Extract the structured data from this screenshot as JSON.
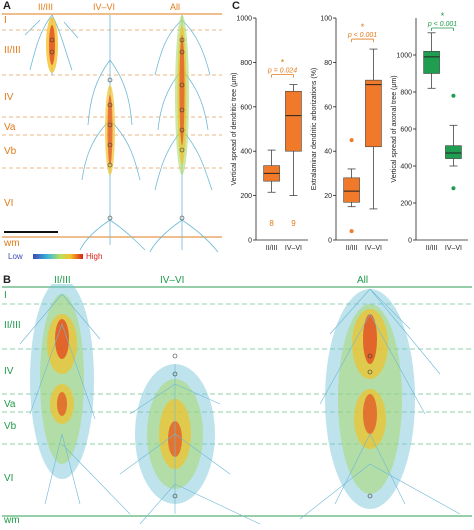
{
  "panel_a": {
    "letter": "A",
    "columns": [
      "II/III",
      "IV–VI",
      "All"
    ],
    "layers": [
      "I",
      "II/III",
      "IV",
      "Va",
      "Vb",
      "VI",
      "wm"
    ],
    "legend": {
      "low": "Low",
      "high": "High"
    }
  },
  "panel_b": {
    "letter": "B",
    "columns": [
      "II/III",
      "IV–VI",
      "All"
    ],
    "layers": [
      "I",
      "II/III",
      "IV",
      "Va",
      "Vb",
      "VI",
      "wm"
    ]
  },
  "panel_c": {
    "letter": "C"
  },
  "colors": {
    "orange": "#e07b1a",
    "green": "#1f9a4a",
    "orange_box": "#f07a2a",
    "green_box": "#1f9e52"
  },
  "chart_data": [
    {
      "type": "box",
      "ylabel": "Vertical spread of dendritic tree (μm)",
      "ylim": [
        0,
        1000
      ],
      "yticks": [
        "0",
        "200",
        "400",
        "600",
        "800",
        "1000"
      ],
      "categories": [
        "II/III",
        "IV–VI"
      ],
      "boxes": [
        {
          "min": 215,
          "q1": 265,
          "median": 300,
          "q3": 335,
          "max": 405
        },
        {
          "min": 200,
          "q1": 400,
          "median": 560,
          "q3": 670,
          "max": 700
        }
      ],
      "outliers": [
        [],
        []
      ],
      "counts": [
        "8",
        "9"
      ],
      "significance": "p = 0.024",
      "star": "*"
    },
    {
      "type": "box",
      "ylabel": "Extralaminar dendritic arborizations (%)",
      "ylim": [
        0,
        100
      ],
      "yticks": [
        "0",
        "20",
        "40",
        "60",
        "80",
        "100"
      ],
      "categories": [
        "II/III",
        "IV–VI"
      ],
      "boxes": [
        {
          "min": 15,
          "q1": 17,
          "median": 22,
          "q3": 28,
          "max": 32
        },
        {
          "min": 14,
          "q1": 42,
          "median": 70,
          "q3": 72,
          "max": 86
        }
      ],
      "outliers": [
        [
          45,
          4
        ],
        []
      ],
      "significance": "p < 0.001",
      "star": "*"
    },
    {
      "type": "box",
      "ylabel": "Vertical spread of axonal tree (μm)",
      "ylim": [
        0,
        1200
      ],
      "yticks": [
        "0",
        "200",
        "400",
        "600",
        "800",
        "1000"
      ],
      "categories": [
        "II/III",
        "IV–VI"
      ],
      "boxes": [
        {
          "min": 820,
          "q1": 900,
          "median": 990,
          "q3": 1020,
          "max": 1120
        },
        {
          "min": 400,
          "q1": 440,
          "median": 470,
          "q3": 510,
          "max": 620
        }
      ],
      "outliers": [
        [],
        [
          780,
          280
        ]
      ],
      "significance": "p < 0.001",
      "star": "*"
    }
  ]
}
